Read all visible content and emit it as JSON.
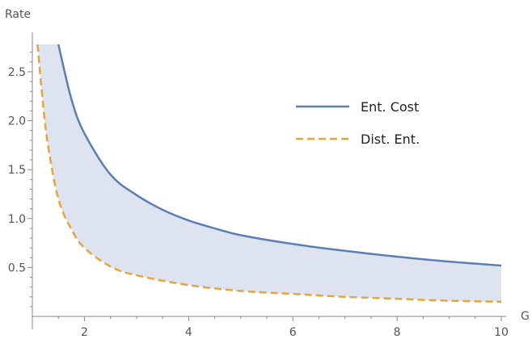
{
  "chart_data": {
    "type": "line",
    "xlabel": "G",
    "ylabel": "Rate",
    "xlim": [
      1.0,
      10.0
    ],
    "ylim": [
      0.0,
      2.78
    ],
    "x_ticks": [
      2,
      4,
      6,
      8,
      10
    ],
    "x_tick_labels": [
      "2",
      "4",
      "6",
      "8",
      "10"
    ],
    "y_ticks": [
      0.5,
      1.0,
      1.5,
      2.0,
      2.5
    ],
    "y_tick_labels": [
      "0.5",
      "1.0",
      "1.5",
      "2.0",
      "2.5"
    ],
    "grid": false,
    "legend_position": "right",
    "shaded_region_between_series": true,
    "shade_color": "#dde4f0",
    "series": [
      {
        "name": "Ent. Cost",
        "color": "#5b7fb5",
        "dash": "solid",
        "x": [
          1.5,
          1.75,
          2.0,
          2.5,
          3.0,
          3.5,
          4.0,
          4.5,
          5.0,
          6.0,
          7.0,
          8.0,
          9.0,
          10.0
        ],
        "y": [
          2.78,
          2.22,
          1.87,
          1.45,
          1.24,
          1.09,
          0.98,
          0.9,
          0.83,
          0.74,
          0.67,
          0.61,
          0.56,
          0.52
        ]
      },
      {
        "name": "Dist. Ent.",
        "color": "#e8a43a",
        "dash": "dashed",
        "x": [
          1.1,
          1.2,
          1.3,
          1.5,
          1.75,
          2.0,
          2.5,
          3.0,
          4.0,
          5.0,
          6.0,
          7.0,
          8.0,
          9.0,
          10.0
        ],
        "y": [
          2.78,
          2.2,
          1.75,
          1.2,
          0.89,
          0.7,
          0.51,
          0.42,
          0.32,
          0.26,
          0.23,
          0.2,
          0.18,
          0.16,
          0.15
        ]
      }
    ]
  }
}
